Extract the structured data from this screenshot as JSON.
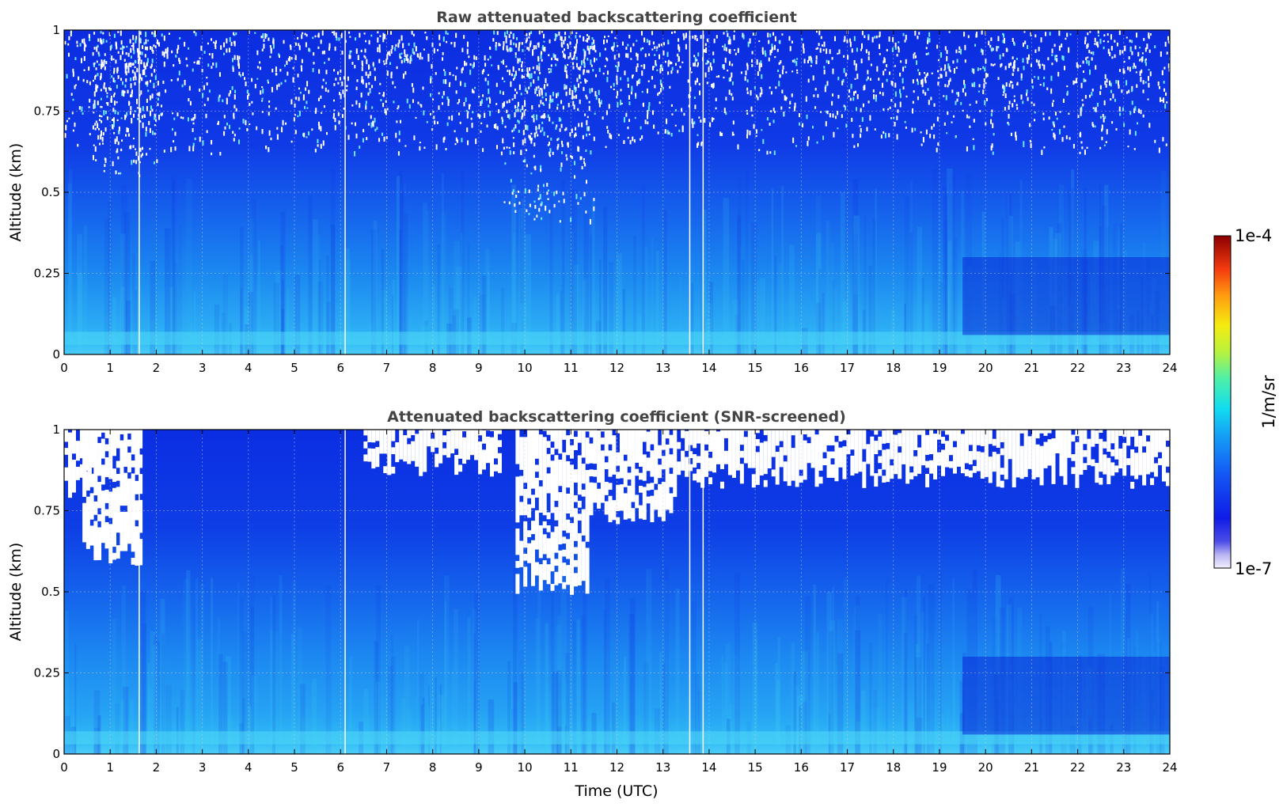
{
  "chart_data": [
    {
      "type": "heatmap",
      "title": "Raw attenuated backscattering coefficient",
      "xlabel": "",
      "ylabel": "Altitude (km)",
      "xlim": [
        0,
        24
      ],
      "ylim": [
        0,
        1
      ],
      "x_ticks": [
        0,
        1,
        2,
        3,
        4,
        5,
        6,
        7,
        8,
        9,
        10,
        11,
        12,
        13,
        14,
        15,
        16,
        17,
        18,
        19,
        20,
        21,
        22,
        23,
        24
      ],
      "y_ticks": [
        0,
        0.25,
        0.5,
        0.75,
        1
      ],
      "y_tick_labels": [
        "0",
        "0.25",
        "0.5",
        "0.75",
        "1"
      ],
      "grid": true,
      "screened": false,
      "gap_lines_utc": [
        1.63,
        6.1,
        13.58,
        13.87
      ],
      "white_noise_regions": [
        {
          "t0": 0.0,
          "t1": 24.0,
          "alt_min": 0.62,
          "density": 0.35
        },
        {
          "t0": 0.6,
          "t1": 2.0,
          "alt_min": 0.55,
          "density": 0.55
        },
        {
          "t0": 9.5,
          "t1": 11.5,
          "alt_min": 0.4,
          "density": 0.6
        }
      ]
    },
    {
      "type": "heatmap",
      "title": "Attenuated backscattering coefficient (SNR-screened)",
      "xlabel": "Time (UTC)",
      "ylabel": "Altitude (km)",
      "xlim": [
        0,
        24
      ],
      "ylim": [
        0,
        1
      ],
      "x_ticks": [
        0,
        1,
        2,
        3,
        4,
        5,
        6,
        7,
        8,
        9,
        10,
        11,
        12,
        13,
        14,
        15,
        16,
        17,
        18,
        19,
        20,
        21,
        22,
        23,
        24
      ],
      "y_ticks": [
        0,
        0.25,
        0.5,
        0.75,
        1
      ],
      "y_tick_labels": [
        "0",
        "0.25",
        "0.5",
        "0.75",
        "1"
      ],
      "grid": true,
      "screened": true,
      "gap_lines_utc": [
        1.63,
        6.1,
        13.58,
        13.87
      ],
      "masked_regions": [
        {
          "t0": 0.0,
          "t1": 0.6,
          "alt_min": 0.8
        },
        {
          "t0": 0.4,
          "t1": 1.7,
          "alt_min": 0.6
        },
        {
          "t0": 9.8,
          "t1": 11.4,
          "alt_min": 0.5
        },
        {
          "t0": 11.4,
          "t1": 13.3,
          "alt_min": 0.72
        },
        {
          "t0": 6.5,
          "t1": 9.5,
          "alt_min": 0.88
        },
        {
          "t0": 13.3,
          "t1": 24.0,
          "alt_min": 0.84
        }
      ]
    }
  ],
  "colorbar": {
    "label": "1/m/sr",
    "max_label": "1e-4",
    "min_label": "1e-7",
    "scale": "log",
    "range": [
      1e-07,
      0.0001
    ],
    "colormap": "jet with white-to-lavender low end"
  },
  "colors": {
    "background": "#0a2fe0",
    "low_signal": "#1a3cf2",
    "mid_signal": "#1f8ff5",
    "boundary_layer": "#2ab2f7",
    "surface_layer": "#3fd0f5",
    "masked": "#ffffff"
  }
}
